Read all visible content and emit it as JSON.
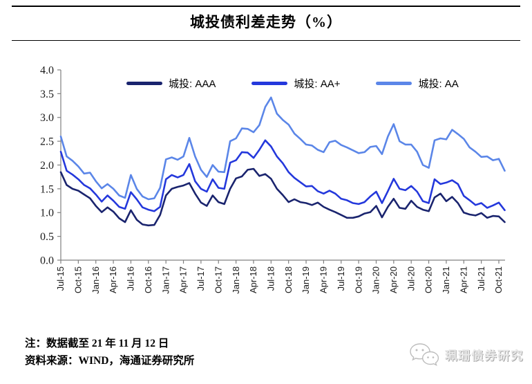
{
  "header": {
    "title": "城投债利差走势（%）"
  },
  "legend": [
    {
      "label": "城投: AAA",
      "color": "#1a246e"
    },
    {
      "label": "城投: AA+",
      "color": "#2438dc"
    },
    {
      "label": "城投: AA",
      "color": "#5b86e8"
    }
  ],
  "notes": {
    "line1": "注：数据截至 21 年 11 月 12 日",
    "line2": "资料来源：WIND，海通证券研究所"
  },
  "watermark": {
    "text": "珮珊债券研究",
    "icon": "wechat-bubbles-icon"
  },
  "chart_data": {
    "type": "line",
    "title": "城投债利差走势（%）",
    "xlabel": "",
    "ylabel": "",
    "ylim": [
      0,
      4.0
    ],
    "ytick_step": 0.5,
    "grid": false,
    "legend_position": "top",
    "x_tick_labels": [
      "Jul-15",
      "Oct-15",
      "Jan-16",
      "Apr-16",
      "Jul-16",
      "Oct-16",
      "Jan-17",
      "Apr-17",
      "Jul-17",
      "Oct-17",
      "Jan-18",
      "Apr-18",
      "Jul-18",
      "Oct-18",
      "Jan-19",
      "Apr-19",
      "Jul-19",
      "Oct-19",
      "Jan-20",
      "Apr-20",
      "Jul-20",
      "Oct-20",
      "Jan-21",
      "Apr-21",
      "Jul-21",
      "Oct-21"
    ],
    "x": [
      "2015-07",
      "2015-08",
      "2015-09",
      "2015-10",
      "2015-11",
      "2015-12",
      "2016-01",
      "2016-02",
      "2016-03",
      "2016-04",
      "2016-05",
      "2016-06",
      "2016-07",
      "2016-08",
      "2016-09",
      "2016-10",
      "2016-11",
      "2016-12",
      "2017-01",
      "2017-02",
      "2017-03",
      "2017-04",
      "2017-05",
      "2017-06",
      "2017-07",
      "2017-08",
      "2017-09",
      "2017-10",
      "2017-11",
      "2017-12",
      "2018-01",
      "2018-02",
      "2018-03",
      "2018-04",
      "2018-05",
      "2018-06",
      "2018-07",
      "2018-08",
      "2018-09",
      "2018-10",
      "2018-11",
      "2018-12",
      "2019-01",
      "2019-02",
      "2019-03",
      "2019-04",
      "2019-05",
      "2019-06",
      "2019-07",
      "2019-08",
      "2019-09",
      "2019-10",
      "2019-11",
      "2019-12",
      "2020-01",
      "2020-02",
      "2020-03",
      "2020-04",
      "2020-05",
      "2020-06",
      "2020-07",
      "2020-08",
      "2020-09",
      "2020-10",
      "2020-11",
      "2020-12",
      "2021-01",
      "2021-02",
      "2021-03",
      "2021-04",
      "2021-05",
      "2021-06",
      "2021-07",
      "2021-08",
      "2021-09",
      "2021-10",
      "2021-11"
    ],
    "series": [
      {
        "name": "城投: AAA",
        "color": "#1a246e",
        "values": [
          1.85,
          1.58,
          1.5,
          1.46,
          1.38,
          1.3,
          1.14,
          1.01,
          1.11,
          1.02,
          0.88,
          0.8,
          1.05,
          0.85,
          0.75,
          0.73,
          0.74,
          0.95,
          1.36,
          1.5,
          1.54,
          1.57,
          1.62,
          1.4,
          1.21,
          1.14,
          1.36,
          1.22,
          1.18,
          1.5,
          1.72,
          1.76,
          1.9,
          1.92,
          1.77,
          1.81,
          1.71,
          1.5,
          1.37,
          1.22,
          1.28,
          1.22,
          1.2,
          1.16,
          1.21,
          1.12,
          1.06,
          1.01,
          0.95,
          0.89,
          0.89,
          0.92,
          0.98,
          1.01,
          1.14,
          0.9,
          1.12,
          1.29,
          1.1,
          1.08,
          1.25,
          1.12,
          1.06,
          1.03,
          1.32,
          1.4,
          1.24,
          1.33,
          1.2,
          1.0,
          0.96,
          0.94,
          0.99,
          0.89,
          0.93,
          0.92,
          0.8
        ]
      },
      {
        "name": "城投: AA+",
        "color": "#2438dc",
        "values": [
          2.28,
          1.88,
          1.8,
          1.7,
          1.58,
          1.51,
          1.38,
          1.23,
          1.36,
          1.25,
          1.12,
          1.08,
          1.43,
          1.28,
          1.11,
          1.06,
          1.03,
          1.12,
          1.7,
          1.79,
          1.74,
          1.79,
          2.02,
          1.66,
          1.5,
          1.44,
          1.7,
          1.52,
          1.5,
          2.05,
          2.1,
          2.27,
          2.26,
          2.15,
          2.32,
          2.52,
          2.39,
          2.18,
          2.04,
          1.85,
          1.73,
          1.64,
          1.55,
          1.56,
          1.45,
          1.4,
          1.46,
          1.4,
          1.29,
          1.26,
          1.2,
          1.18,
          1.22,
          1.34,
          1.44,
          1.2,
          1.45,
          1.71,
          1.5,
          1.47,
          1.56,
          1.44,
          1.24,
          1.2,
          1.7,
          1.6,
          1.63,
          1.68,
          1.6,
          1.35,
          1.26,
          1.16,
          1.2,
          1.1,
          1.15,
          1.21,
          1.05
        ]
      },
      {
        "name": "城投: AA",
        "color": "#5b86e8",
        "values": [
          2.6,
          2.18,
          2.09,
          1.97,
          1.82,
          1.84,
          1.66,
          1.51,
          1.6,
          1.5,
          1.36,
          1.31,
          1.79,
          1.5,
          1.34,
          1.28,
          1.3,
          1.52,
          2.12,
          2.16,
          2.11,
          2.18,
          2.57,
          2.18,
          1.9,
          1.75,
          2.0,
          1.86,
          1.85,
          2.5,
          2.56,
          2.77,
          2.76,
          2.69,
          2.84,
          3.22,
          3.42,
          3.08,
          2.95,
          2.85,
          2.66,
          2.55,
          2.43,
          2.41,
          2.32,
          2.27,
          2.48,
          2.51,
          2.42,
          2.37,
          2.31,
          2.25,
          2.27,
          2.38,
          2.4,
          2.23,
          2.6,
          2.86,
          2.5,
          2.43,
          2.43,
          2.28,
          2.0,
          1.94,
          2.52,
          2.56,
          2.54,
          2.74,
          2.65,
          2.55,
          2.37,
          2.28,
          2.17,
          2.18,
          2.1,
          2.13,
          1.88
        ]
      }
    ]
  }
}
